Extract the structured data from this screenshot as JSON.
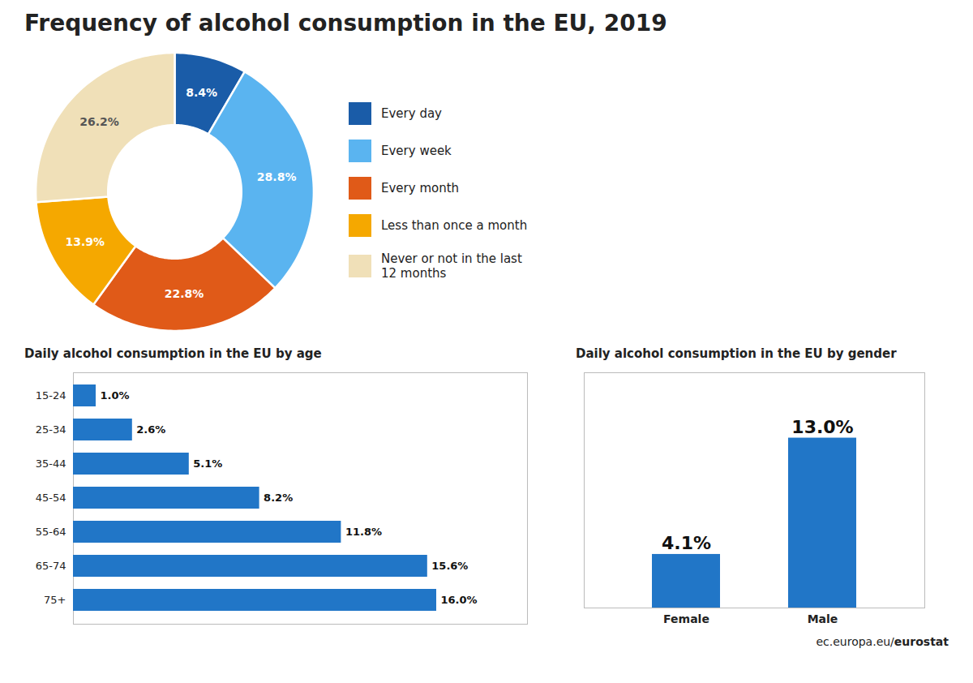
{
  "chart_data": [
    {
      "type": "pie",
      "title": "Frequency of alcohol consumption in the EU, 2019",
      "categories": [
        "Every day",
        "Every week",
        "Every month",
        "Less than once a month",
        "Never or not in the last\n12 months"
      ],
      "values": [
        8.4,
        28.8,
        22.8,
        13.9,
        26.2
      ],
      "value_labels": [
        "8.4%",
        "28.8%",
        "22.8%",
        "13.9%",
        "26.2%"
      ],
      "colors": [
        "#1a5ca8",
        "#5ab4f0",
        "#e05a18",
        "#f5a800",
        "#f0e0b8"
      ],
      "data_labels": true,
      "legend": "right"
    },
    {
      "type": "bar",
      "title": "Daily alcohol consumption in the EU by age",
      "orientation": "horizontal",
      "categories": [
        "15-24",
        "25-34",
        "35-44",
        "45-54",
        "55-64",
        "65-74",
        "75+"
      ],
      "values": [
        1.0,
        2.6,
        5.1,
        8.2,
        11.8,
        15.6,
        16.0
      ],
      "value_labels": [
        "1.0%",
        "2.6%",
        "5.1%",
        "8.2%",
        "11.8%",
        "15.6%",
        "16.0%"
      ],
      "color": "#2176c7",
      "xlim": [
        0,
        20
      ],
      "data_labels": true,
      "tick_labels": "y"
    },
    {
      "type": "bar",
      "title": "Daily alcohol consumption in the EU by gender",
      "categories": [
        "Female",
        "Male"
      ],
      "values": [
        4.1,
        13.0
      ],
      "value_labels": [
        "4.1%",
        "13.0%"
      ],
      "color": "#2176c7",
      "ylim": [
        0,
        18
      ],
      "data_labels": true,
      "tick_labels": "x",
      "annotations": [
        "ec.europa.eu/",
        "eurostat"
      ]
    }
  ]
}
